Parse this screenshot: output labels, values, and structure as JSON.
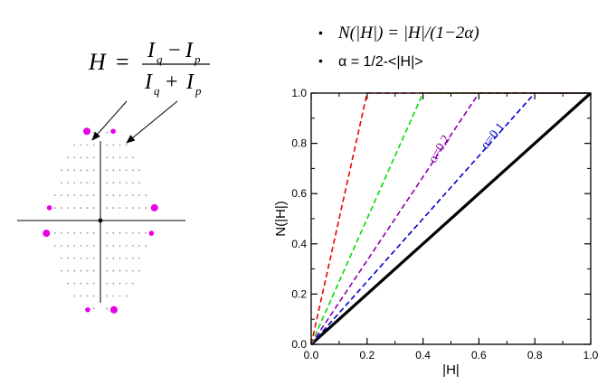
{
  "formula": {
    "lhs": "H",
    "equals": "=",
    "numerator_a": "I",
    "numerator_a_sub": "q",
    "minus": "−",
    "numerator_b": "I",
    "numerator_b_sub": "p",
    "denominator_a": "I",
    "denominator_a_sub": "q",
    "plus": "+",
    "denominator_b": "I",
    "denominator_b_sub": "p"
  },
  "bullets": [
    {
      "marker": "•",
      "text": "N(|H|) = |H|/(1−2α)"
    },
    {
      "marker": "•",
      "text": "α = 1/2-<|H|>"
    }
  ],
  "diffraction": {
    "grid_color": "#999999",
    "spot_color": "#e600e6",
    "axis_color": "#000000",
    "large_spots": [
      [
        -1,
        7
      ],
      [
        1,
        -7
      ],
      [
        4,
        1
      ],
      [
        -4,
        -1
      ]
    ],
    "small_spots": [
      [
        1,
        7
      ],
      [
        -1,
        -7
      ],
      [
        -4,
        1
      ],
      [
        4,
        -1
      ]
    ],
    "origin": [
      0,
      0
    ]
  },
  "chart_data": {
    "type": "line",
    "title": "",
    "xlabel": "|H|",
    "ylabel": "N(|H|)",
    "xlim": [
      0,
      1
    ],
    "ylim": [
      0,
      1
    ],
    "xticks": [
      "0.0",
      "0.2",
      "0.4",
      "0.6",
      "0.8",
      "1.0"
    ],
    "yticks": [
      "0.0",
      "0.2",
      "0.4",
      "0.6",
      "0.8",
      "1.0"
    ],
    "grid": false,
    "series": [
      {
        "name": "",
        "color": "#000000",
        "style": "solid",
        "points": [
          [
            0,
            0
          ],
          [
            1,
            1
          ]
        ]
      },
      {
        "name": "",
        "color": "#0000cc",
        "style": "dashed",
        "points": [
          [
            0,
            0
          ],
          [
            0.8,
            1
          ],
          [
            1,
            1
          ]
        ]
      },
      {
        "name": "",
        "color": "#8800aa",
        "style": "dashed",
        "points": [
          [
            0,
            0
          ],
          [
            0.6,
            1
          ],
          [
            1,
            1
          ]
        ]
      },
      {
        "name": "",
        "color": "#00dd00",
        "style": "dashed",
        "points": [
          [
            0,
            0
          ],
          [
            0.4,
            1
          ],
          [
            1,
            1
          ]
        ]
      },
      {
        "name": "",
        "color": "#ee0000",
        "style": "dashed",
        "points": [
          [
            0,
            0
          ],
          [
            0.2,
            1
          ],
          [
            1,
            1
          ]
        ]
      }
    ],
    "annotations": [
      {
        "text": "α=0.1",
        "color": "#0000cc",
        "x": 0.66,
        "y": 0.82,
        "angle": -51
      },
      {
        "text": "α=0.2",
        "color": "#8800aa",
        "x": 0.47,
        "y": 0.77,
        "angle": -59
      }
    ]
  }
}
